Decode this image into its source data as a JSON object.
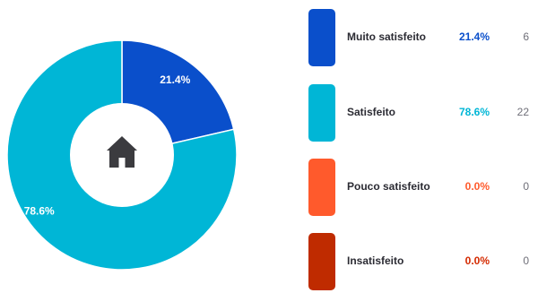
{
  "center_icon": "home-icon",
  "chart_data": {
    "type": "pie",
    "donut": true,
    "categories": [
      "Muito satisfeito",
      "Satisfeito",
      "Pouco satisfeito",
      "Insatisfeito"
    ],
    "percent_labels": [
      "21.4%",
      "78.6%",
      "0.0%",
      "0.0%"
    ],
    "values": [
      21.4,
      78.6,
      0.0,
      0.0
    ],
    "counts": [
      6,
      22,
      0,
      0
    ],
    "colors": [
      "#0a4fcb",
      "#00b6d6",
      "#ff5a2c",
      "#bf2b00"
    ],
    "percent_text_colors": [
      "#0a4fcb",
      "#00b6d6",
      "#ff5a2c",
      "#d42a00"
    ],
    "legend_position": "right"
  }
}
